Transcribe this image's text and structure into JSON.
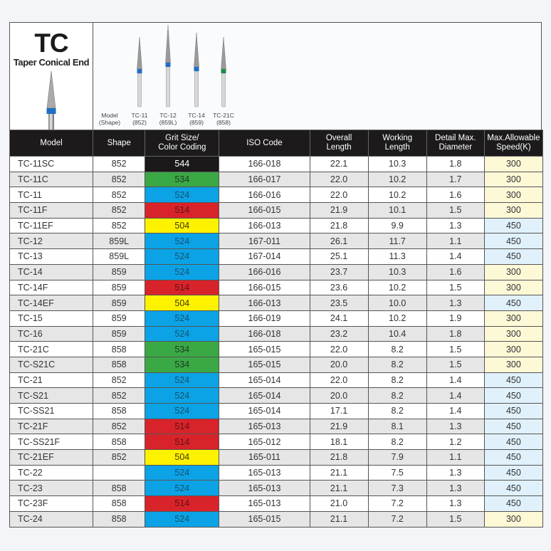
{
  "header": {
    "code": "TC",
    "subtitle": "Taper Conical End",
    "image_caption_label": [
      "Model",
      "(Shape)"
    ],
    "burs": [
      {
        "model": "TC-11",
        "shape": "(852)",
        "band_color": "#1f6fc4"
      },
      {
        "model": "TC-12",
        "shape": "(859L)",
        "band_color": "#1f6fc4"
      },
      {
        "model": "TC-14",
        "shape": "(859)",
        "band_color": "#1f6fc4"
      },
      {
        "model": "TC-21C",
        "shape": "(858)",
        "band_color": "#1f8a4a"
      }
    ]
  },
  "table": {
    "columns": [
      [
        "Model"
      ],
      [
        "Shape"
      ],
      [
        "Grit Size/",
        "Color Coding"
      ],
      [
        "ISO Code"
      ],
      [
        "Overall",
        "Length"
      ],
      [
        "Working",
        "Length"
      ],
      [
        "Detail Max.",
        "Diameter"
      ],
      [
        "Max.Allowable",
        "Speed(K)"
      ]
    ],
    "grit_colors": {
      "544": {
        "bg": "#1a1818",
        "fg": "#ffffff"
      },
      "534": {
        "bg": "#3aa845",
        "fg": "#1b3d1e"
      },
      "524": {
        "bg": "#0ba3e6",
        "fg": "#14506e"
      },
      "514": {
        "bg": "#d9232a",
        "fg": "#5a1214"
      },
      "504": {
        "bg": "#fff200",
        "fg": "#3d3800"
      }
    },
    "rows": [
      {
        "model": "TC-11SC",
        "shape": "852",
        "grit": "544",
        "iso": "166-018",
        "overall": "22.1",
        "working": "10.3",
        "diameter": "1.8",
        "speed": "300"
      },
      {
        "model": "TC-11C",
        "shape": "852",
        "grit": "534",
        "iso": "166-017",
        "overall": "22.0",
        "working": "10.2",
        "diameter": "1.7",
        "speed": "300"
      },
      {
        "model": "TC-11",
        "shape": "852",
        "grit": "524",
        "iso": "166-016",
        "overall": "22.0",
        "working": "10.2",
        "diameter": "1.6",
        "speed": "300"
      },
      {
        "model": "TC-11F",
        "shape": "852",
        "grit": "514",
        "iso": "166-015",
        "overall": "21.9",
        "working": "10.1",
        "diameter": "1.5",
        "speed": "300"
      },
      {
        "model": "TC-11EF",
        "shape": "852",
        "grit": "504",
        "iso": "166-013",
        "overall": "21.8",
        "working": "9.9",
        "diameter": "1.3",
        "speed": "450"
      },
      {
        "model": "TC-12",
        "shape": "859L",
        "grit": "524",
        "iso": "167-011",
        "overall": "26.1",
        "working": "11.7",
        "diameter": "1.1",
        "speed": "450"
      },
      {
        "model": "TC-13",
        "shape": "859L",
        "grit": "524",
        "iso": "167-014",
        "overall": "25.1",
        "working": "11.3",
        "diameter": "1.4",
        "speed": "450"
      },
      {
        "model": "TC-14",
        "shape": "859",
        "grit": "524",
        "iso": "166-016",
        "overall": "23.7",
        "working": "10.3",
        "diameter": "1.6",
        "speed": "300"
      },
      {
        "model": "TC-14F",
        "shape": "859",
        "grit": "514",
        "iso": "166-015",
        "overall": "23.6",
        "working": "10.2",
        "diameter": "1.5",
        "speed": "300"
      },
      {
        "model": "TC-14EF",
        "shape": "859",
        "grit": "504",
        "iso": "166-013",
        "overall": "23.5",
        "working": "10.0",
        "diameter": "1.3",
        "speed": "450"
      },
      {
        "model": "TC-15",
        "shape": "859",
        "grit": "524",
        "iso": "166-019",
        "overall": "24.1",
        "working": "10.2",
        "diameter": "1.9",
        "speed": "300"
      },
      {
        "model": "TC-16",
        "shape": "859",
        "grit": "524",
        "iso": "166-018",
        "overall": "23.2",
        "working": "10.4",
        "diameter": "1.8",
        "speed": "300"
      },
      {
        "model": "TC-21C",
        "shape": "858",
        "grit": "534",
        "iso": "165-015",
        "overall": "22.0",
        "working": "8.2",
        "diameter": "1.5",
        "speed": "300"
      },
      {
        "model": "TC-S21C",
        "shape": "858",
        "grit": "534",
        "iso": "165-015",
        "overall": "20.0",
        "working": "8.2",
        "diameter": "1.5",
        "speed": "300"
      },
      {
        "model": "TC-21",
        "shape": "852",
        "grit": "524",
        "iso": "165-014",
        "overall": "22.0",
        "working": "8.2",
        "diameter": "1.4",
        "speed": "450"
      },
      {
        "model": "TC-S21",
        "shape": "852",
        "grit": "524",
        "iso": "165-014",
        "overall": "20.0",
        "working": "8.2",
        "diameter": "1.4",
        "speed": "450"
      },
      {
        "model": "TC-SS21",
        "shape": "858",
        "grit": "524",
        "iso": "165-014",
        "overall": "17.1",
        "working": "8.2",
        "diameter": "1.4",
        "speed": "450"
      },
      {
        "model": "TC-21F",
        "shape": "852",
        "grit": "514",
        "iso": "165-013",
        "overall": "21.9",
        "working": "8.1",
        "diameter": "1.3",
        "speed": "450"
      },
      {
        "model": "TC-SS21F",
        "shape": "858",
        "grit": "514",
        "iso": "165-012",
        "overall": "18.1",
        "working": "8.2",
        "diameter": "1.2",
        "speed": "450"
      },
      {
        "model": "TC-21EF",
        "shape": "852",
        "grit": "504",
        "iso": "165-011",
        "overall": "21.8",
        "working": "7.9",
        "diameter": "1.1",
        "speed": "450"
      },
      {
        "model": "TC-22",
        "shape": "",
        "grit": "524",
        "iso": "165-013",
        "overall": "21.1",
        "working": "7.5",
        "diameter": "1.3",
        "speed": "450"
      },
      {
        "model": "TC-23",
        "shape": "858",
        "grit": "524",
        "iso": "165-013",
        "overall": "21.1",
        "working": "7.3",
        "diameter": "1.3",
        "speed": "450"
      },
      {
        "model": "TC-23F",
        "shape": "858",
        "grit": "514",
        "iso": "165-013",
        "overall": "21.0",
        "working": "7.2",
        "diameter": "1.3",
        "speed": "450"
      },
      {
        "model": "TC-24",
        "shape": "858",
        "grit": "524",
        "iso": "165-015",
        "overall": "21.1",
        "working": "7.2",
        "diameter": "1.5",
        "speed": "300"
      }
    ]
  }
}
